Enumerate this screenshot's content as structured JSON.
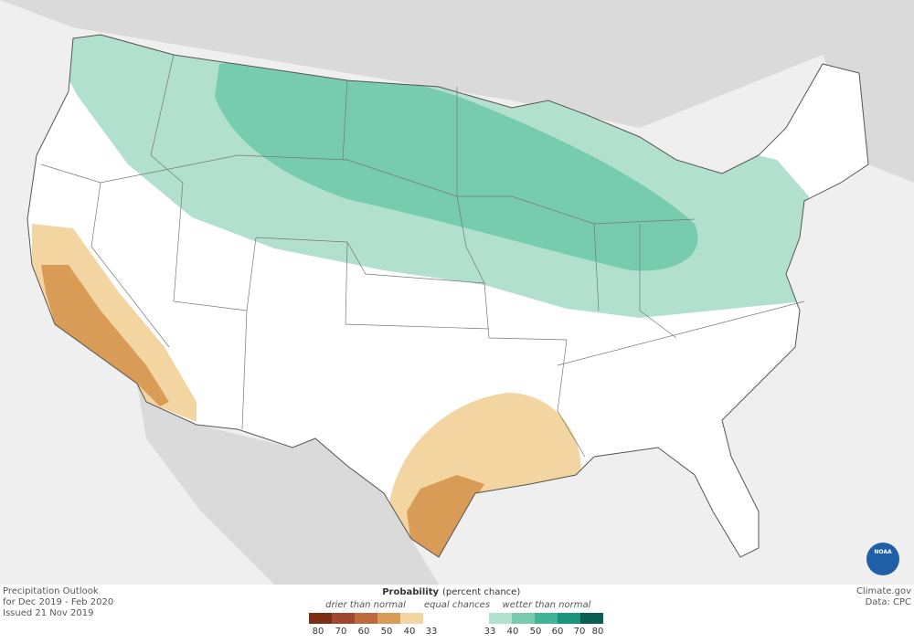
{
  "title": {
    "line1": "Precipitation Outlook",
    "line2": "for Dec 2019 - Feb 2020",
    "line3": "Issued 21 Nov 2019"
  },
  "legend": {
    "heading": "Probability",
    "heading_note": "(percent chance)",
    "drier_label": "drier than normal",
    "equal_label": "equal chances",
    "wetter_label": "wetter than normal",
    "drier_ticks": [
      "80",
      "70",
      "60",
      "50",
      "40",
      "33"
    ],
    "wetter_ticks": [
      "33",
      "40",
      "50",
      "60",
      "70",
      "80"
    ]
  },
  "credits": {
    "site": "Climate.gov",
    "data": "Data: CPC",
    "logo": "NOAA"
  }
}
